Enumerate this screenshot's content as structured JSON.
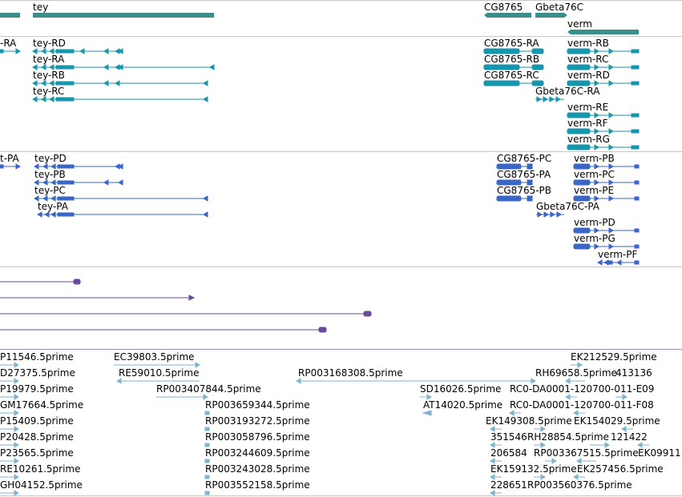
{
  "genes": [
    {
      "label": "tey"
    },
    {
      "label": "CG8765"
    },
    {
      "label": "Gbeta76C"
    },
    {
      "label": "verm"
    }
  ],
  "transcripts_ra": [
    {
      "label": "-RA"
    },
    {
      "label": "tey-RD"
    },
    {
      "label": "tey-RA"
    },
    {
      "label": "tey-RB"
    },
    {
      "label": "tey-RC"
    },
    {
      "label": "CG8765-RA"
    },
    {
      "label": "CG8765-RB"
    },
    {
      "label": "CG8765-RC"
    },
    {
      "label": "Gbeta76C-RA"
    },
    {
      "label": "verm-RB"
    },
    {
      "label": "verm-RC"
    },
    {
      "label": "verm-RD"
    },
    {
      "label": "verm-RE"
    },
    {
      "label": "verm-RF"
    },
    {
      "label": "verm-RG"
    }
  ],
  "proteins": [
    {
      "label": "t-PA"
    },
    {
      "label": "tey-PD"
    },
    {
      "label": "tey-PB"
    },
    {
      "label": "tey-PC"
    },
    {
      "label": "tey-PA"
    },
    {
      "label": "CG8765-PC"
    },
    {
      "label": "CG8765-PA"
    },
    {
      "label": "CG8765-PB"
    },
    {
      "label": "Gbeta76C-PA"
    },
    {
      "label": "verm-PB"
    },
    {
      "label": "verm-PC"
    },
    {
      "label": "verm-PE"
    },
    {
      "label": "verm-PD"
    },
    {
      "label": "verm-PG"
    },
    {
      "label": "verm-PF"
    }
  ],
  "ests": [
    {
      "label": "P11546.5prime"
    },
    {
      "label": "D27375.5prime"
    },
    {
      "label": "P19979.5prime"
    },
    {
      "label": "GM17664.5prime"
    },
    {
      "label": "P15409.5prime"
    },
    {
      "label": "P20428.5prime"
    },
    {
      "label": "P23565.5prime"
    },
    {
      "label": "RE10261.5prime"
    },
    {
      "label": "GH04152.5prime"
    },
    {
      "label": "EC39803.5prime"
    },
    {
      "label": "RE59010.5prime"
    },
    {
      "label": "RP003407844.5prime"
    },
    {
      "label": "RP003659344.5prime"
    },
    {
      "label": "RP003193272.5prime"
    },
    {
      "label": "RP003058796.5prime"
    },
    {
      "label": "RP003244609.5prime"
    },
    {
      "label": "RP003243028.5prime"
    },
    {
      "label": "RP003552158.5prime"
    },
    {
      "label": "RP003168308.5prime"
    },
    {
      "label": "SD16026.5prime"
    },
    {
      "label": "AT14020.5prime"
    },
    {
      "label": "EK212529.5prime"
    },
    {
      "label": "RH69658.5prime"
    },
    {
      "label": "413136"
    },
    {
      "label": "RC0-DA0001-120700-011-E09"
    },
    {
      "label": "RC0-DA0001-120700-011-F08"
    },
    {
      "label": "EK149308.5prime"
    },
    {
      "label": "EK154029.5prime"
    },
    {
      "label": "351546"
    },
    {
      "label": "RH28854.5prime"
    },
    {
      "label": "121422"
    },
    {
      "label": "206584"
    },
    {
      "label": "RP003367515.5prime"
    },
    {
      "label": "EK09911"
    },
    {
      "label": "EK159132.5prime"
    },
    {
      "label": "EK257456.5prime"
    },
    {
      "label": "228651"
    },
    {
      "label": "RP003560376.5prime"
    }
  ],
  "colors": {
    "gene": "#3a8f8a",
    "transcript": "#1596ad",
    "protein": "#3a66c8",
    "alignment": "#6a4a9a",
    "est": "#7fb3cf",
    "divider": "#c8c8c8"
  }
}
